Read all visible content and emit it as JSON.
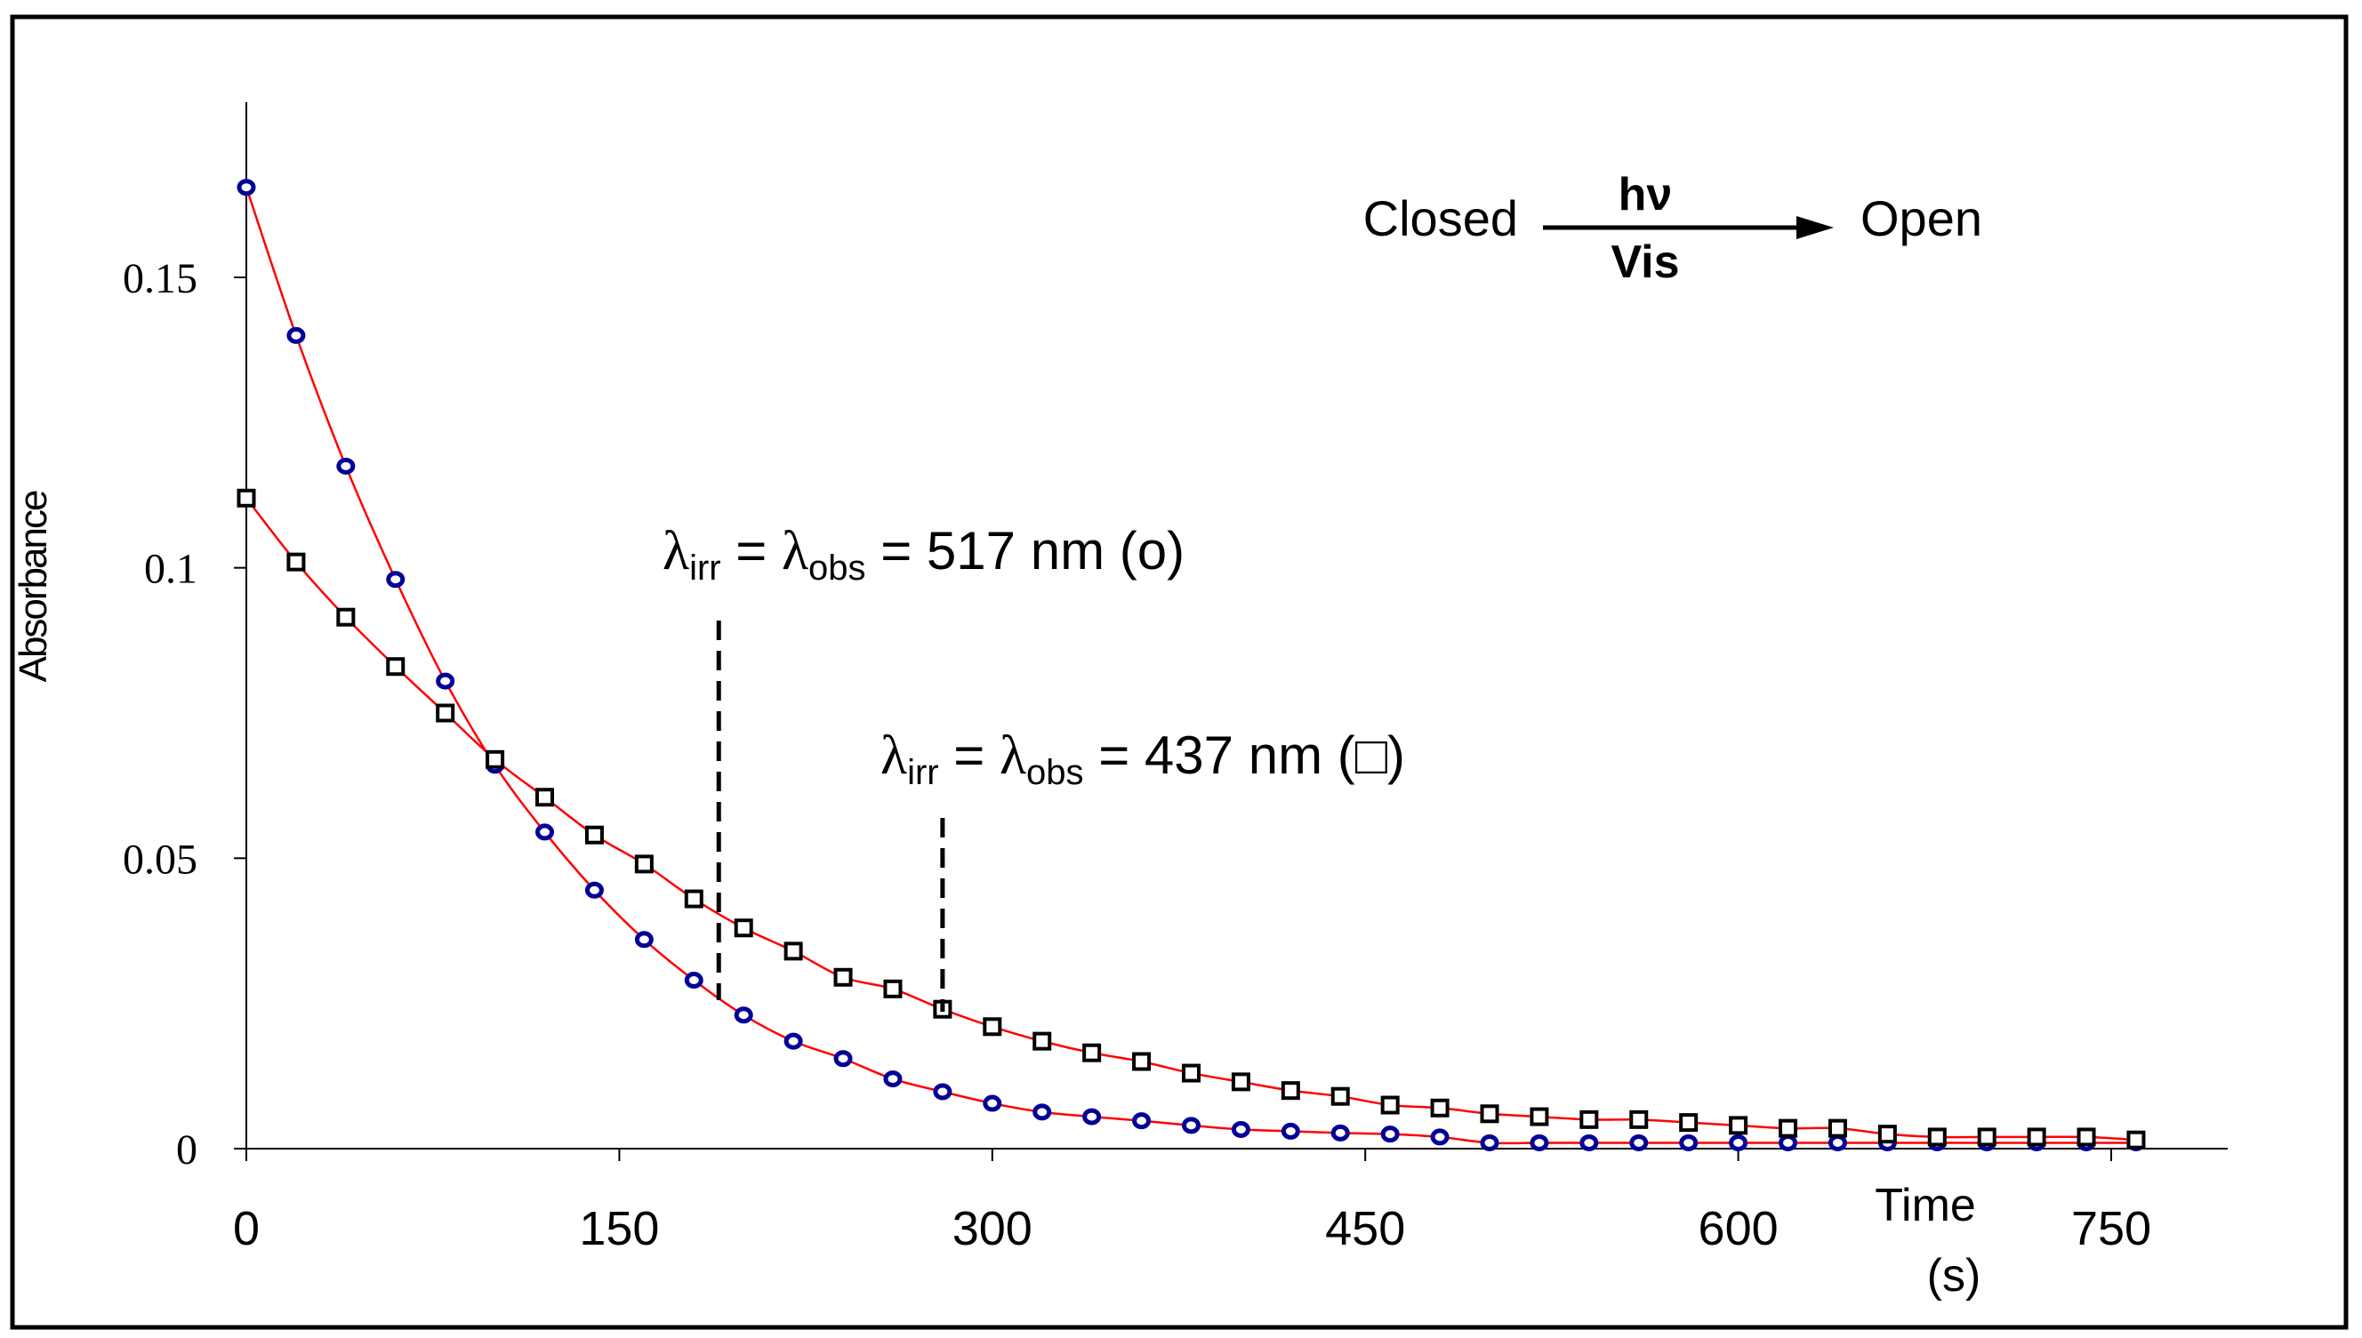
{
  "chart_data": {
    "type": "scatter",
    "title": "",
    "xlabel_line1": "Time",
    "xlabel_line2": "(s)",
    "ylabel": "Absorbance",
    "xlim": [
      0,
      800
    ],
    "ylim": [
      0,
      0.18
    ],
    "x_ticks": [
      0,
      150,
      300,
      450,
      600,
      750
    ],
    "x_tick_labels": [
      "0",
      "150",
      "300",
      "450",
      "600",
      "750"
    ],
    "y_ticks": [
      0,
      0.05,
      0.1,
      0.15
    ],
    "y_tick_labels": [
      "0",
      "0.05",
      "0.1",
      "0.15"
    ],
    "grid": false,
    "fit_line_color": "#ff0000",
    "series": [
      {
        "name": "517 nm (o)",
        "marker": "circle",
        "marker_color": "#000099",
        "x": [
          0,
          20,
          40,
          60,
          80,
          100,
          120,
          140,
          160,
          180,
          200,
          220,
          240,
          260,
          280,
          300,
          320,
          340,
          360,
          380,
          400,
          420,
          440,
          460,
          480,
          500,
          520,
          540,
          560,
          580,
          600,
          620,
          640,
          660,
          680,
          700,
          720,
          740,
          760
        ],
        "values": [
          0.1655,
          0.14,
          0.1175,
          0.098,
          0.0805,
          0.066,
          0.0545,
          0.0445,
          0.036,
          0.029,
          0.023,
          0.0185,
          0.0155,
          0.012,
          0.0098,
          0.0078,
          0.0063,
          0.0055,
          0.0048,
          0.004,
          0.0033,
          0.003,
          0.0027,
          0.0025,
          0.002,
          0.001,
          0.001,
          0.001,
          0.001,
          0.001,
          0.001,
          0.001,
          0.001,
          0.001,
          0.001,
          0.001,
          0.001,
          0.001,
          0.001
        ]
      },
      {
        "name": "437 nm (□)",
        "marker": "square",
        "marker_color": "#000000",
        "x": [
          0,
          20,
          40,
          60,
          80,
          100,
          120,
          140,
          160,
          180,
          200,
          220,
          240,
          260,
          280,
          300,
          320,
          340,
          360,
          380,
          400,
          420,
          440,
          460,
          480,
          500,
          520,
          540,
          560,
          580,
          600,
          620,
          640,
          660,
          680,
          700,
          720,
          740,
          760
        ],
        "values": [
          0.112,
          0.101,
          0.0915,
          0.083,
          0.075,
          0.067,
          0.0605,
          0.054,
          0.049,
          0.043,
          0.038,
          0.034,
          0.0295,
          0.0275,
          0.024,
          0.021,
          0.0185,
          0.0165,
          0.015,
          0.013,
          0.0115,
          0.01,
          0.009,
          0.0075,
          0.007,
          0.006,
          0.0055,
          0.005,
          0.005,
          0.0045,
          0.004,
          0.0035,
          0.0035,
          0.0025,
          0.002,
          0.002,
          0.002,
          0.002,
          0.0015
        ]
      }
    ],
    "annotations": {
      "reaction": {
        "from": "Closed",
        "above_arrow": "hν",
        "below_arrow": "Vis",
        "to": "Open"
      },
      "label_517": {
        "sym1": "λ",
        "sub1": "irr",
        "eq1": " = ",
        "sym2": "λ",
        "sub2": "obs",
        "eq2": " = 517 nm (o)",
        "marker_x": 190
      },
      "label_437": {
        "sym1": "λ",
        "sub1": "irr",
        "eq1": " = ",
        "sym2": "λ",
        "sub2": "obs",
        "eq2": " = 437 nm (□)",
        "marker_x": 280
      }
    }
  }
}
